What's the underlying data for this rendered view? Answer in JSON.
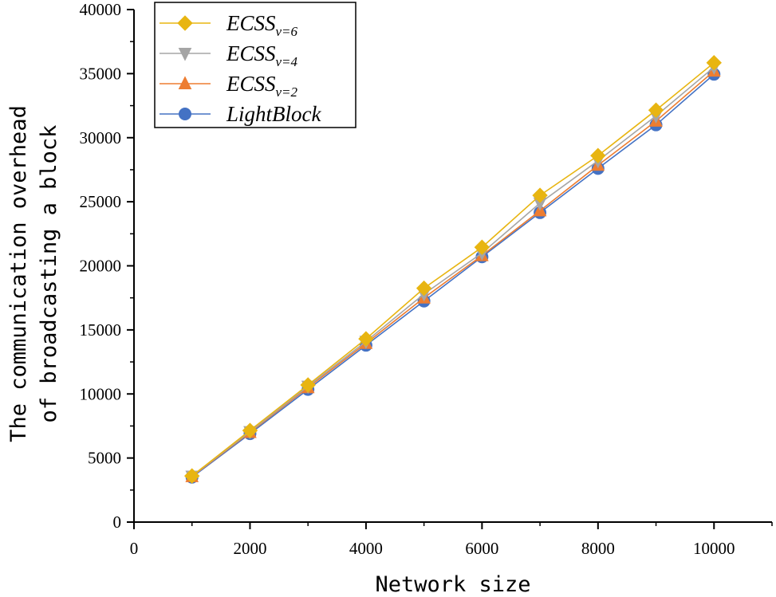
{
  "chart_data": {
    "type": "line",
    "xlabel": "Network size",
    "ylabel_lines": [
      "The communication overhead",
      "of broadcasting a block"
    ],
    "xlim": [
      0,
      11000
    ],
    "ylim": [
      0,
      40000
    ],
    "xticks": [
      0,
      2000,
      4000,
      6000,
      8000,
      10000
    ],
    "yticks": [
      0,
      5000,
      10000,
      15000,
      20000,
      25000,
      30000,
      35000,
      40000
    ],
    "x": [
      1000,
      2000,
      3000,
      4000,
      5000,
      6000,
      7000,
      8000,
      9000,
      10000
    ],
    "legend_position": "top-left",
    "series": [
      {
        "name": "LightBlock",
        "label_main": "LightBlock",
        "label_sub": "",
        "marker": "circle",
        "color": "#4472C4",
        "values": [
          3500,
          6900,
          10350,
          13800,
          17250,
          20700,
          24150,
          27600,
          31000,
          34950
        ]
      },
      {
        "name": "ECSS v=2",
        "label_main": "ECSS",
        "label_sub": "v=2",
        "marker": "triangle-up",
        "color": "#ED7D31",
        "values": [
          3550,
          7000,
          10500,
          13950,
          17500,
          20800,
          24300,
          27850,
          31300,
          35200
        ]
      },
      {
        "name": "ECSS v=4",
        "label_main": "ECSS",
        "label_sub": "v=4",
        "marker": "triangle-down",
        "color": "#A5A5A5",
        "values": [
          3580,
          7050,
          10600,
          14100,
          17800,
          21000,
          24900,
          28200,
          31700,
          35500
        ]
      },
      {
        "name": "ECSS v=6",
        "label_main": "ECSS",
        "label_sub": "v=6",
        "marker": "diamond",
        "color": "#E8B511",
        "values": [
          3600,
          7150,
          10700,
          14300,
          18250,
          21450,
          25500,
          28600,
          32150,
          35850
        ]
      }
    ],
    "legend_order": [
      3,
      2,
      1,
      0
    ]
  }
}
